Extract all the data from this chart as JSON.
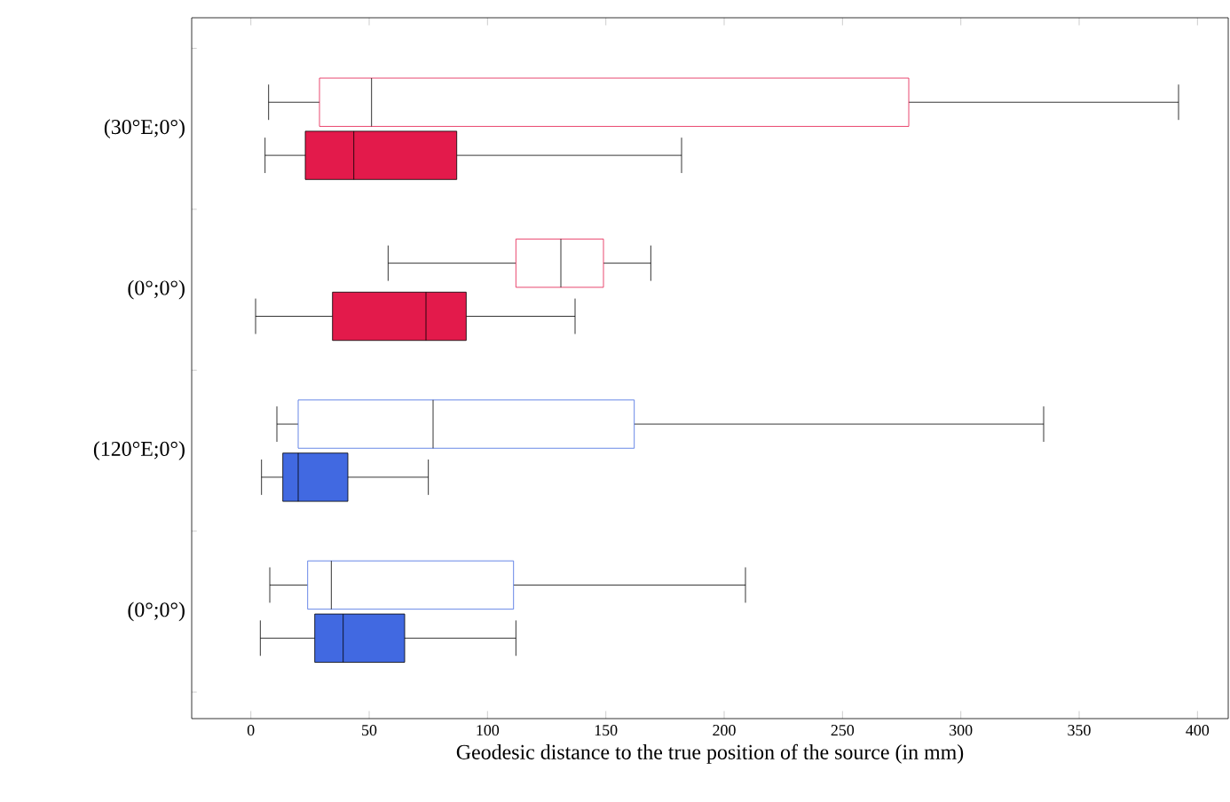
{
  "chart_data": {
    "type": "box",
    "orientation": "horizontal",
    "xlabel": "Geodesic distance to the true position of the source (in mm)",
    "categories": [
      "(30°E;0°)",
      "(0°;0°)",
      "(120°E;0°)",
      "(0°;0°)"
    ],
    "xlim": [
      -25,
      413
    ],
    "xticks": [
      0,
      50,
      100,
      150,
      200,
      250,
      300,
      350,
      400
    ],
    "series": [
      {
        "colors": [
          "#e31a4b",
          "#e31a4b",
          "#4169e1",
          "#4169e1"
        ],
        "boxes": [
          {
            "low": 7.5,
            "q1": 29,
            "median": 51,
            "q3": 278,
            "high": 392
          },
          {
            "low": 58,
            "q1": 112,
            "median": 131,
            "q3": 149,
            "high": 169
          },
          {
            "low": 11,
            "q1": 20,
            "median": 77,
            "q3": 162,
            "high": 335
          },
          {
            "low": 8,
            "q1": 24,
            "median": 34,
            "q3": 111,
            "high": 209
          }
        ]
      },
      {
        "colors": [
          "#e31a4b",
          "#e31a4b",
          "#4169e1",
          "#4169e1"
        ],
        "boxes": [
          {
            "low": 6,
            "q1": 23,
            "median": 43.5,
            "q3": 87,
            "high": 182
          },
          {
            "low": 2,
            "q1": 34.5,
            "median": 74,
            "q3": 91,
            "high": 137
          },
          {
            "low": 4.5,
            "q1": 13.5,
            "median": 20,
            "q3": 41,
            "high": 75
          },
          {
            "low": 4,
            "q1": 27,
            "median": 39,
            "q3": 65,
            "high": 112
          }
        ]
      }
    ]
  }
}
